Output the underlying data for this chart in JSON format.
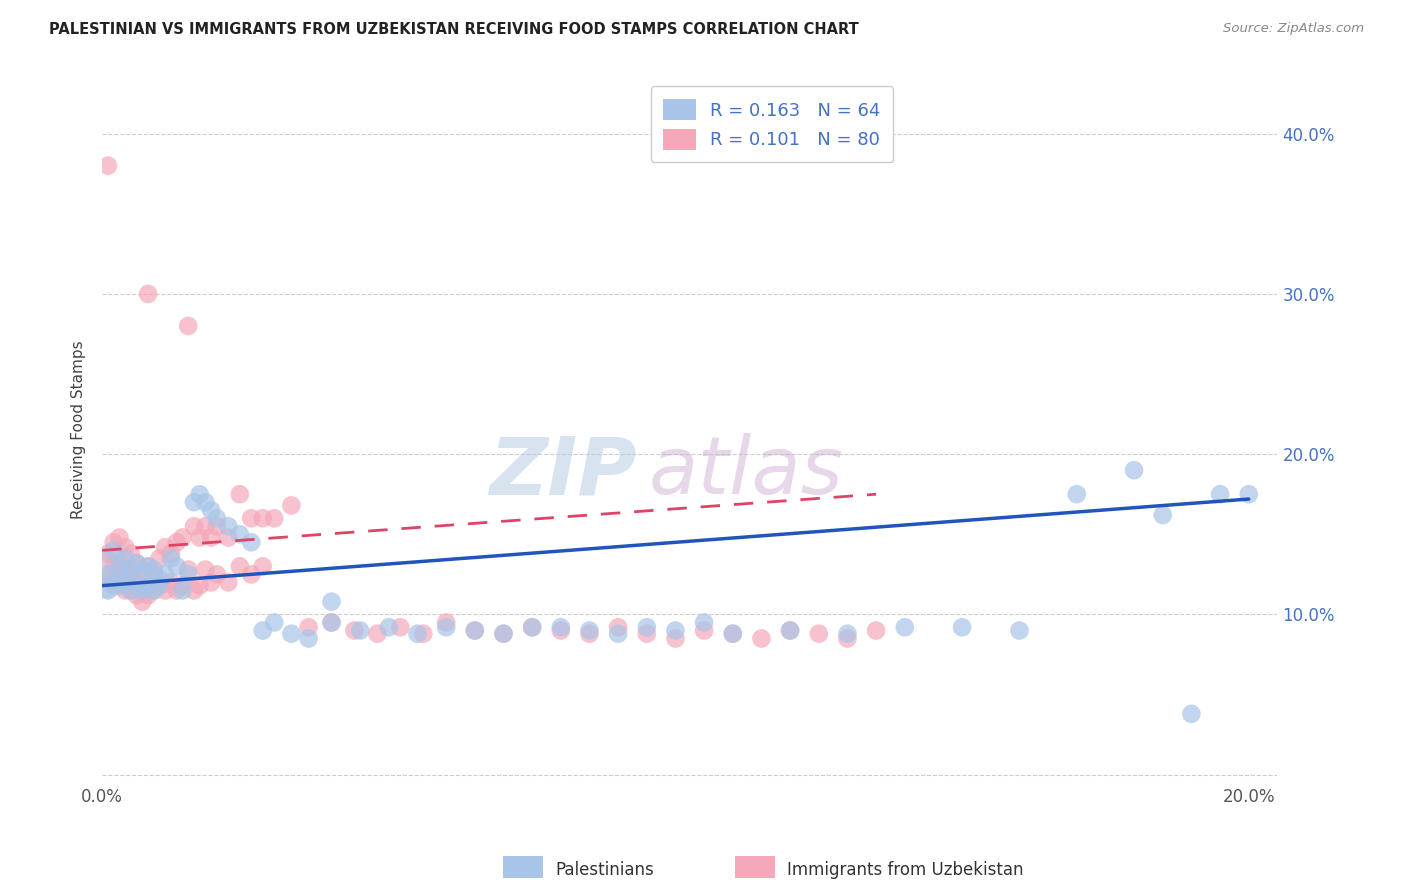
{
  "title": "PALESTINIAN VS IMMIGRANTS FROM UZBEKISTAN RECEIVING FOOD STAMPS CORRELATION CHART",
  "source": "Source: ZipAtlas.com",
  "ylabel": "Receiving Food Stamps",
  "xlim": [
    0.0,
    0.205
  ],
  "ylim": [
    -0.005,
    0.435
  ],
  "xticks": [
    0.0,
    0.05,
    0.1,
    0.15,
    0.2
  ],
  "yticks": [
    0.0,
    0.1,
    0.2,
    0.3,
    0.4
  ],
  "r_blue": 0.163,
  "n_blue": 64,
  "r_pink": 0.101,
  "n_pink": 80,
  "blue_color": "#a8c4e8",
  "pink_color": "#f4a8b8",
  "blue_line_color": "#2255bb",
  "pink_line_color": "#dd4466",
  "watermark_zip": "ZIP",
  "watermark_atlas": "atlas",
  "legend_label_blue": "Palestinians",
  "legend_label_pink": "Immigrants from Uzbekistan",
  "blue_x": [
    0.001,
    0.001,
    0.002,
    0.002,
    0.003,
    0.003,
    0.004,
    0.004,
    0.005,
    0.005,
    0.006,
    0.006,
    0.007,
    0.007,
    0.008,
    0.008,
    0.009,
    0.009,
    0.01,
    0.01,
    0.011,
    0.012,
    0.013,
    0.014,
    0.015,
    0.016,
    0.017,
    0.018,
    0.019,
    0.02,
    0.022,
    0.024,
    0.026,
    0.028,
    0.03,
    0.033,
    0.036,
    0.04,
    0.04,
    0.045,
    0.05,
    0.055,
    0.06,
    0.065,
    0.07,
    0.075,
    0.08,
    0.085,
    0.09,
    0.095,
    0.1,
    0.105,
    0.11,
    0.12,
    0.13,
    0.14,
    0.15,
    0.16,
    0.17,
    0.18,
    0.185,
    0.19,
    0.195,
    0.2
  ],
  "blue_y": [
    0.125,
    0.115,
    0.14,
    0.12,
    0.13,
    0.118,
    0.135,
    0.122,
    0.128,
    0.115,
    0.132,
    0.118,
    0.125,
    0.115,
    0.13,
    0.118,
    0.128,
    0.115,
    0.122,
    0.118,
    0.125,
    0.135,
    0.13,
    0.115,
    0.125,
    0.17,
    0.175,
    0.17,
    0.165,
    0.16,
    0.155,
    0.15,
    0.145,
    0.09,
    0.095,
    0.088,
    0.085,
    0.095,
    0.108,
    0.09,
    0.092,
    0.088,
    0.092,
    0.09,
    0.088,
    0.092,
    0.092,
    0.09,
    0.088,
    0.092,
    0.09,
    0.095,
    0.088,
    0.09,
    0.088,
    0.092,
    0.092,
    0.09,
    0.175,
    0.19,
    0.162,
    0.038,
    0.175,
    0.175
  ],
  "pink_x": [
    0.001,
    0.001,
    0.001,
    0.002,
    0.002,
    0.002,
    0.003,
    0.003,
    0.003,
    0.004,
    0.004,
    0.004,
    0.005,
    0.005,
    0.005,
    0.006,
    0.006,
    0.006,
    0.007,
    0.007,
    0.007,
    0.008,
    0.008,
    0.008,
    0.009,
    0.009,
    0.01,
    0.01,
    0.011,
    0.011,
    0.012,
    0.012,
    0.013,
    0.013,
    0.014,
    0.014,
    0.015,
    0.015,
    0.016,
    0.016,
    0.017,
    0.017,
    0.018,
    0.018,
    0.019,
    0.019,
    0.02,
    0.02,
    0.022,
    0.022,
    0.024,
    0.024,
    0.026,
    0.026,
    0.028,
    0.028,
    0.03,
    0.033,
    0.036,
    0.04,
    0.044,
    0.048,
    0.052,
    0.056,
    0.06,
    0.065,
    0.07,
    0.075,
    0.08,
    0.085,
    0.09,
    0.095,
    0.1,
    0.105,
    0.11,
    0.115,
    0.12,
    0.125,
    0.13,
    0.135
  ],
  "pink_y": [
    0.38,
    0.138,
    0.122,
    0.145,
    0.13,
    0.118,
    0.148,
    0.132,
    0.12,
    0.142,
    0.128,
    0.115,
    0.138,
    0.125,
    0.115,
    0.132,
    0.12,
    0.112,
    0.128,
    0.118,
    0.108,
    0.13,
    0.3,
    0.112,
    0.125,
    0.115,
    0.135,
    0.118,
    0.142,
    0.115,
    0.138,
    0.12,
    0.145,
    0.115,
    0.148,
    0.118,
    0.28,
    0.128,
    0.155,
    0.115,
    0.148,
    0.118,
    0.155,
    0.128,
    0.148,
    0.12,
    0.155,
    0.125,
    0.148,
    0.12,
    0.175,
    0.13,
    0.16,
    0.125,
    0.16,
    0.13,
    0.16,
    0.168,
    0.092,
    0.095,
    0.09,
    0.088,
    0.092,
    0.088,
    0.095,
    0.09,
    0.088,
    0.092,
    0.09,
    0.088,
    0.092,
    0.088,
    0.085,
    0.09,
    0.088,
    0.085,
    0.09,
    0.088,
    0.085,
    0.09
  ],
  "blue_line_x0": 0.0,
  "blue_line_y0": 0.118,
  "blue_line_x1": 0.2,
  "blue_line_y1": 0.172,
  "pink_line_x0": 0.0,
  "pink_line_y0": 0.14,
  "pink_line_x1": 0.135,
  "pink_line_y1": 0.175
}
